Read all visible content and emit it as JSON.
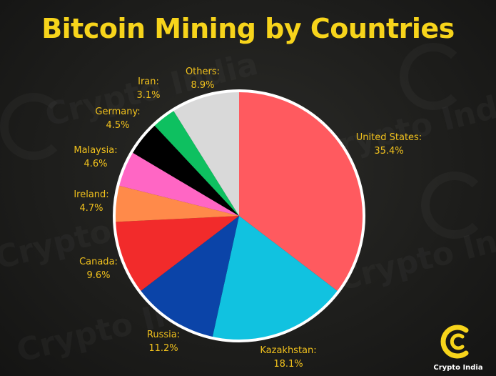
{
  "title": "Bitcoin Mining by Countries",
  "watermark_text": "Crypto India",
  "logo_text": "Crypto India",
  "colors": {
    "title": "#f7d41b",
    "label": "#f2c21d",
    "pie_border": "#ffffff"
  },
  "chart_data": {
    "type": "pie",
    "title": "Bitcoin Mining by Countries",
    "slices": [
      {
        "label": "United States:",
        "value": 35.4,
        "value_text": "35.4%",
        "color": "#ff5a5f"
      },
      {
        "label": "Kazakhstan:",
        "value": 18.1,
        "value_text": "18.1%",
        "color": "#11c2e0"
      },
      {
        "label": "Russia:",
        "value": 11.2,
        "value_text": "11.2%",
        "color": "#0b44a8"
      },
      {
        "label": "Canada:",
        "value": 9.6,
        "value_text": "9.6%",
        "color": "#f22b2b"
      },
      {
        "label": "Ireland:",
        "value": 4.7,
        "value_text": "4.7%",
        "color": "#ff8a4a"
      },
      {
        "label": "Malaysia:",
        "value": 4.6,
        "value_text": "4.6%",
        "color": "#ff66c4"
      },
      {
        "label": "Germany:",
        "value": 4.5,
        "value_text": "4.5%",
        "color": "#000000"
      },
      {
        "label": "Iran:",
        "value": 3.1,
        "value_text": "3.1%",
        "color": "#0ec060"
      },
      {
        "label": "Others:",
        "value": 8.9,
        "value_text": "8.9%",
        "color": "#d9d9d9"
      }
    ]
  }
}
